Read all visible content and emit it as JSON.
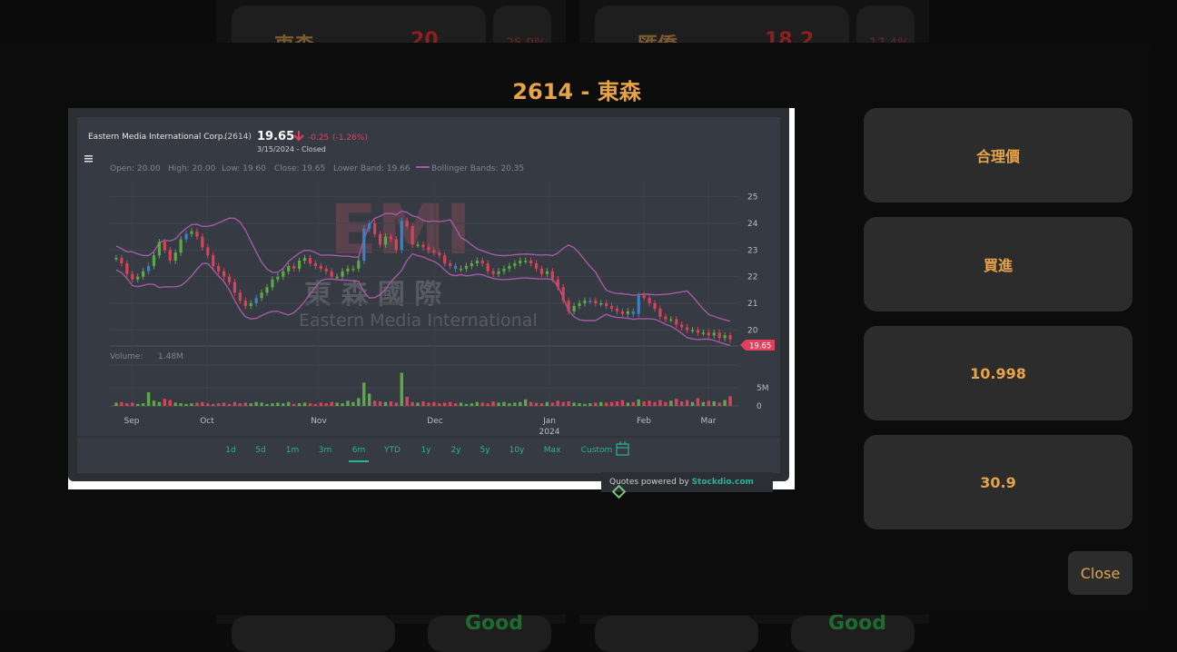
{
  "background": {
    "cards": [
      {
        "name": "東森",
        "price": "20",
        "pct": "25.9%",
        "good": "Good"
      },
      {
        "name": "匯僑",
        "price": "18.2",
        "pct": "17.4%",
        "good": "Good"
      }
    ]
  },
  "modal": {
    "title": "2614 - 東森",
    "buttons": [
      {
        "label": "合理價"
      },
      {
        "label": "買進"
      },
      {
        "label": "10.998"
      },
      {
        "label": "30.9"
      }
    ],
    "close_label": "Close"
  },
  "chart_header": {
    "company": "Eastern Media International Corp.",
    "code": "(2614)",
    "price": "19.65",
    "change": "-0.25",
    "change_pct": "(-1.26%)",
    "date_status": "3/15/2024 - Closed",
    "open": "Open: 20.00",
    "high": "High: 20.00",
    "low": "Low: 19.60",
    "close": "Close: 19.65",
    "lower_band": "Lower Band: 19.66",
    "bollinger": "Bollinger Bands: 20.35",
    "volume_label": "Volume:",
    "volume_value": "1.48M",
    "last_price_tag": "19.65",
    "watermark_big": "EMI",
    "watermark_cn": "東 森 國 際",
    "watermark_en": "Eastern Media International",
    "powered_prefix": "Quotes powered by",
    "powered_brand": "Stockdio.com",
    "colors": {
      "up": "#5fa84a",
      "down": "#d9425a",
      "blue": "#3b82c4",
      "band": "#a45aa4",
      "accent": "#2bb09c"
    }
  },
  "ranges": [
    "1d",
    "5d",
    "1m",
    "3m",
    "6m",
    "YTD",
    "1y",
    "2y",
    "5y",
    "10y",
    "Max",
    "Custom"
  ],
  "active_range": "6m",
  "chart_data": {
    "type": "candlestick",
    "title": "Eastern Media International Corp. (2614)",
    "x_ticks": [
      "Sep",
      "Oct",
      "Nov",
      "Dec",
      "Jan",
      "Feb",
      "Mar"
    ],
    "x_tick_year": "2024",
    "y_ticks": [
      "25",
      "24",
      "23",
      "22",
      "21",
      "20"
    ],
    "ylim": [
      19.4,
      25.6
    ],
    "volume_ticks": [
      "5M",
      "0"
    ],
    "close_series": [
      22.7,
      22.5,
      22.1,
      21.9,
      22.0,
      22.2,
      22.4,
      22.8,
      23.3,
      23.0,
      22.6,
      22.9,
      23.4,
      23.6,
      23.7,
      23.5,
      23.1,
      22.8,
      22.4,
      22.2,
      22.0,
      21.8,
      21.4,
      21.1,
      20.9,
      21.0,
      21.2,
      21.4,
      21.6,
      21.9,
      22.0,
      22.2,
      22.4,
      22.3,
      22.6,
      22.7,
      22.5,
      22.4,
      22.3,
      22.2,
      22.0,
      22.0,
      22.2,
      22.3,
      22.3,
      22.6,
      23.8,
      24.0,
      23.6,
      23.2,
      23.5,
      23.4,
      23.0,
      24.1,
      23.9,
      23.2,
      23.2,
      23.1,
      23.0,
      22.9,
      22.8,
      22.5,
      22.4,
      22.3,
      22.3,
      22.4,
      22.5,
      22.6,
      22.5,
      22.2,
      22.1,
      22.2,
      22.3,
      22.4,
      22.5,
      22.6,
      22.6,
      22.5,
      22.3,
      22.1,
      22.2,
      21.9,
      21.6,
      21.1,
      20.7,
      20.9,
      21.0,
      21.1,
      21.1,
      21.0,
      21.0,
      20.9,
      20.8,
      20.7,
      20.6,
      20.7,
      20.6,
      21.3,
      21.2,
      21.0,
      20.8,
      20.5,
      20.4,
      20.4,
      20.2,
      20.1,
      20.0,
      20.0,
      19.9,
      19.9,
      19.8,
      19.9,
      19.7,
      19.8,
      19.65
    ],
    "volume_series": [
      0.5,
      0.6,
      0.4,
      0.5,
      0.3,
      0.4,
      2.1,
      0.8,
      0.6,
      1.1,
      0.9,
      0.5,
      0.4,
      0.3,
      0.4,
      0.5,
      0.6,
      0.4,
      0.3,
      0.4,
      0.5,
      0.3,
      0.6,
      0.4,
      0.5,
      0.4,
      0.6,
      0.5,
      0.3,
      0.4,
      0.5,
      0.4,
      0.6,
      0.3,
      0.4,
      0.5,
      0.4,
      0.3,
      0.5,
      0.4,
      0.6,
      0.5,
      0.4,
      0.8,
      0.6,
      1.2,
      3.6,
      1.9,
      0.8,
      0.7,
      0.6,
      0.7,
      0.5,
      5.1,
      1.4,
      0.6,
      0.5,
      0.7,
      0.5,
      0.6,
      0.4,
      0.5,
      0.6,
      0.4,
      0.5,
      0.3,
      0.4,
      0.6,
      0.5,
      0.4,
      0.7,
      0.5,
      0.6,
      0.4,
      0.5,
      0.6,
      1.0,
      0.6,
      0.5,
      0.4,
      0.6,
      0.5,
      0.8,
      0.6,
      0.7,
      0.5,
      0.4,
      0.3,
      0.4,
      0.5,
      0.6,
      0.5,
      0.6,
      0.7,
      0.9,
      0.5,
      0.6,
      1.0,
      0.7,
      0.8,
      0.6,
      0.9,
      0.6,
      0.8,
      1.1,
      0.7,
      0.9,
      0.6,
      1.2,
      0.6,
      0.8,
      0.7,
      0.5,
      0.9,
      1.48
    ]
  }
}
